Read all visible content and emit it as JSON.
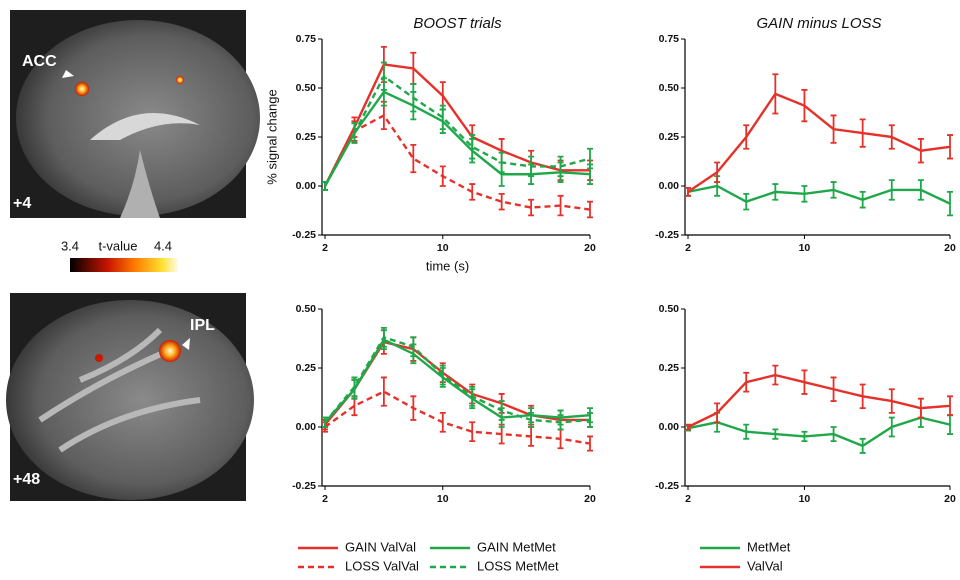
{
  "chart_data": [
    {
      "type": "line",
      "title": "BOOST trials",
      "ylabel": "% signal change",
      "xlabel": "time (s)",
      "x": [
        2,
        4,
        6,
        8,
        10,
        12,
        14,
        16,
        18,
        20
      ],
      "xlim": [
        2,
        20
      ],
      "xticks": [
        2,
        10,
        20
      ],
      "ylim": [
        -0.25,
        0.75
      ],
      "yticks": [
        {
          "value": -0.25,
          "label": "-0.25"
        },
        {
          "value": 0,
          "label": "0.00"
        },
        {
          "value": 0.25,
          "label": "0.25"
        },
        {
          "value": 0.5,
          "label": "0.50"
        },
        {
          "value": 0.75,
          "label": "0.75"
        }
      ],
      "series": [
        {
          "color": "#e4322b",
          "dash": false,
          "values": [
            0.0,
            0.3,
            0.62,
            0.6,
            0.46,
            0.25,
            0.18,
            0.12,
            0.08,
            0.08
          ],
          "errors": [
            0.02,
            0.05,
            0.09,
            0.08,
            0.07,
            0.06,
            0.06,
            0.06,
            0.05,
            0.05
          ]
        },
        {
          "color": "#e4322b",
          "dash": true,
          "values": [
            0.0,
            0.28,
            0.36,
            0.14,
            0.05,
            -0.03,
            -0.08,
            -0.11,
            -0.1,
            -0.12
          ],
          "errors": [
            0.02,
            0.05,
            0.07,
            0.07,
            0.05,
            0.04,
            0.04,
            0.04,
            0.05,
            0.04
          ]
        },
        {
          "color": "#1fa84a",
          "dash": false,
          "values": [
            0.0,
            0.27,
            0.48,
            0.41,
            0.33,
            0.18,
            0.06,
            0.06,
            0.07,
            0.06
          ],
          "errors": [
            0.02,
            0.05,
            0.07,
            0.07,
            0.06,
            0.06,
            0.06,
            0.05,
            0.05,
            0.05
          ]
        },
        {
          "color": "#1fa84a",
          "dash": true,
          "values": [
            0.0,
            0.27,
            0.56,
            0.45,
            0.35,
            0.2,
            0.12,
            0.1,
            0.1,
            0.14
          ],
          "errors": [
            0.02,
            0.05,
            0.07,
            0.07,
            0.06,
            0.06,
            0.05,
            0.05,
            0.05,
            0.05
          ]
        }
      ]
    },
    {
      "type": "line",
      "title": "GAIN minus LOSS",
      "x": [
        2,
        4,
        6,
        8,
        10,
        12,
        14,
        16,
        18,
        20
      ],
      "xlim": [
        2,
        20
      ],
      "xticks": [
        2,
        10,
        20
      ],
      "ylim": [
        -0.25,
        0.75
      ],
      "yticks": [
        {
          "value": -0.25,
          "label": "-0.25"
        },
        {
          "value": 0,
          "label": "0.00"
        },
        {
          "value": 0.25,
          "label": "0.25"
        },
        {
          "value": 0.5,
          "label": "0.50"
        },
        {
          "value": 0.75,
          "label": "0.75"
        }
      ],
      "series": [
        {
          "color": "#1fa84a",
          "dash": false,
          "values": [
            -0.03,
            0.0,
            -0.08,
            -0.03,
            -0.04,
            -0.02,
            -0.07,
            -0.02,
            -0.02,
            -0.09
          ],
          "errors": [
            0.02,
            0.05,
            0.04,
            0.04,
            0.04,
            0.04,
            0.04,
            0.05,
            0.05,
            0.06
          ]
        },
        {
          "color": "#e4322b",
          "dash": false,
          "values": [
            -0.03,
            0.07,
            0.25,
            0.47,
            0.41,
            0.29,
            0.27,
            0.25,
            0.18,
            0.2
          ],
          "errors": [
            0.02,
            0.05,
            0.06,
            0.1,
            0.08,
            0.07,
            0.07,
            0.06,
            0.06,
            0.06
          ]
        }
      ]
    },
    {
      "type": "line",
      "x": [
        2,
        4,
        6,
        8,
        10,
        12,
        14,
        16,
        18,
        20
      ],
      "xlim": [
        2,
        20
      ],
      "xticks": [
        2,
        10,
        20
      ],
      "ylim": [
        -0.25,
        0.5
      ],
      "yticks": [
        {
          "value": -0.25,
          "label": "-0.25"
        },
        {
          "value": 0,
          "label": "0.00"
        },
        {
          "value": 0.25,
          "label": "0.25"
        },
        {
          "value": 0.5,
          "label": "0.50"
        }
      ],
      "legend": true,
      "series": [
        {
          "name": "GAIN ValVal",
          "color": "#e4322b",
          "dash": false,
          "values": [
            0.01,
            0.16,
            0.36,
            0.33,
            0.23,
            0.14,
            0.1,
            0.05,
            0.03,
            0.03
          ],
          "errors": [
            0.02,
            0.04,
            0.05,
            0.05,
            0.04,
            0.04,
            0.04,
            0.04,
            0.04,
            0.03
          ]
        },
        {
          "name": "LOSS ValVal",
          "color": "#e4322b",
          "dash": true,
          "values": [
            0.0,
            0.09,
            0.15,
            0.08,
            0.02,
            -0.02,
            -0.03,
            -0.04,
            -0.05,
            -0.07
          ],
          "errors": [
            0.02,
            0.04,
            0.06,
            0.05,
            0.04,
            0.04,
            0.04,
            0.04,
            0.04,
            0.03
          ]
        },
        {
          "name": "GAIN MetMet",
          "color": "#1fa84a",
          "dash": false,
          "values": [
            0.02,
            0.16,
            0.37,
            0.31,
            0.21,
            0.12,
            0.04,
            0.05,
            0.04,
            0.05
          ],
          "errors": [
            0.02,
            0.04,
            0.04,
            0.04,
            0.04,
            0.04,
            0.04,
            0.03,
            0.03,
            0.03
          ]
        },
        {
          "name": "LOSS MetMet",
          "color": "#1fa84a",
          "dash": true,
          "values": [
            0.02,
            0.17,
            0.38,
            0.34,
            0.22,
            0.13,
            0.07,
            0.03,
            0.02,
            0.03
          ],
          "errors": [
            0.02,
            0.04,
            0.04,
            0.04,
            0.04,
            0.04,
            0.04,
            0.03,
            0.03,
            0.03
          ]
        }
      ]
    },
    {
      "type": "line",
      "x": [
        2,
        4,
        6,
        8,
        10,
        12,
        14,
        16,
        18,
        20
      ],
      "xlim": [
        2,
        20
      ],
      "xticks": [
        2,
        10,
        20
      ],
      "ylim": [
        -0.25,
        0.5
      ],
      "yticks": [
        {
          "value": -0.25,
          "label": "-0.25"
        },
        {
          "value": 0,
          "label": "0.00"
        },
        {
          "value": 0.25,
          "label": "0.25"
        },
        {
          "value": 0.5,
          "label": "0.50"
        }
      ],
      "legend": true,
      "series": [
        {
          "name": "MetMet",
          "color": "#1fa84a",
          "dash": false,
          "values": [
            -0.005,
            0.02,
            -0.02,
            -0.03,
            -0.04,
            -0.03,
            -0.08,
            0.0,
            0.04,
            0.01
          ],
          "errors": [
            0.01,
            0.04,
            0.03,
            0.02,
            0.02,
            0.03,
            0.03,
            0.04,
            0.04,
            0.04
          ]
        },
        {
          "name": "ValVal",
          "color": "#e4322b",
          "dash": false,
          "values": [
            0.0,
            0.06,
            0.19,
            0.22,
            0.19,
            0.16,
            0.13,
            0.11,
            0.08,
            0.09
          ],
          "errors": [
            0.01,
            0.04,
            0.04,
            0.04,
            0.05,
            0.05,
            0.05,
            0.05,
            0.04,
            0.04
          ]
        }
      ]
    }
  ],
  "brain_images": [
    {
      "region": "ACC",
      "slice": "+4"
    },
    {
      "region": "IPL",
      "slice": "+48"
    }
  ],
  "colorbar": {
    "min": 3.4,
    "title": "t-value",
    "max": 4.4
  }
}
